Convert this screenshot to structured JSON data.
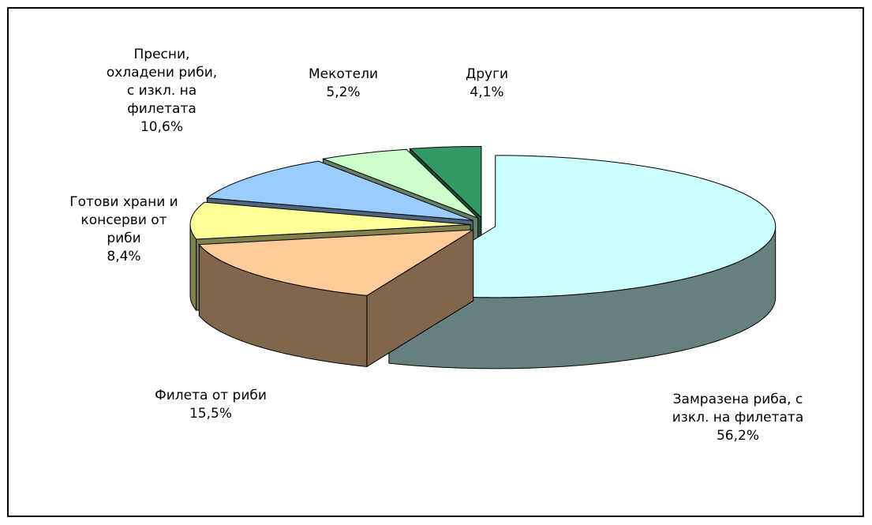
{
  "chart_data": {
    "type": "pie3d",
    "categories": [
      "Замразена риба, с изкл. на филетата",
      "Филета от риби",
      "Готови храни и консерви от риби",
      "Пресни, охладени риби, с изкл. на филетата",
      "Мекотели",
      "Други"
    ],
    "values": [
      56.2,
      15.5,
      8.4,
      10.6,
      5.2,
      4.1
    ],
    "value_labels": [
      "56,2%",
      "15,5%",
      "8,4%",
      "10,6%",
      "5,2%",
      "4,1%"
    ],
    "colors": [
      "#ccffff",
      "#ffcc99",
      "#ffff99",
      "#99ccff",
      "#ccffcc",
      "#339966"
    ]
  }
}
